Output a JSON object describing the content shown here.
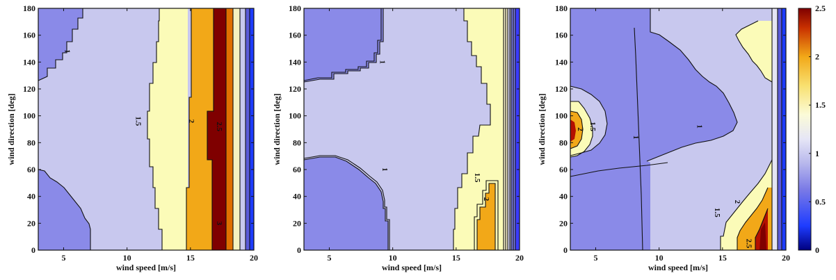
{
  "chart_data": [
    {
      "type": "heatmap",
      "title": "",
      "xlabel": "wind speed [m/s]",
      "ylabel": "wind direction [deg]",
      "xlim": [
        3,
        20
      ],
      "ylim": [
        0,
        180
      ],
      "xticks": [
        5,
        10,
        15,
        20
      ],
      "yticks": [
        0,
        20,
        40,
        60,
        80,
        100,
        120,
        140,
        160,
        180
      ],
      "grid": false,
      "contour_labels": [
        {
          "text": "1",
          "x": 5.1,
          "y": 148
        },
        {
          "text": "1.5",
          "x": 10.7,
          "y": 96
        },
        {
          "text": "2",
          "x": 14.9,
          "y": 96
        },
        {
          "text": "2.5",
          "x": 17.1,
          "y": 92
        },
        {
          "text": "3",
          "x": 17.1,
          "y": 20
        }
      ]
    },
    {
      "type": "heatmap",
      "title": "",
      "xlabel": "wind speed [m/s]",
      "ylabel": "wind direction [deg]",
      "xlim": [
        3,
        20
      ],
      "ylim": [
        0,
        180
      ],
      "xticks": [
        5,
        10,
        15,
        20
      ],
      "yticks": [
        0,
        20,
        40,
        60,
        80,
        100,
        120,
        140,
        160,
        180
      ],
      "grid": false,
      "contour_labels": [
        {
          "text": "1",
          "x": 9.0,
          "y": 140
        },
        {
          "text": "1",
          "x": 9.2,
          "y": 60
        },
        {
          "text": "1.5",
          "x": 16.5,
          "y": 54
        },
        {
          "text": "2",
          "x": 17.2,
          "y": 38
        }
      ]
    },
    {
      "type": "heatmap",
      "title": "",
      "xlabel": "wind speed [m/s]",
      "ylabel": "wind direction [deg]",
      "xlim": [
        3,
        20
      ],
      "ylim": [
        0,
        180
      ],
      "xticks": [
        5,
        10,
        15,
        20
      ],
      "yticks": [
        0,
        20,
        40,
        60,
        80,
        100,
        120,
        140,
        160,
        180
      ],
      "grid": false,
      "contour_labels": [
        {
          "text": "2",
          "x": 3.6,
          "y": 90
        },
        {
          "text": "1.5",
          "x": 4.6,
          "y": 92
        },
        {
          "text": "1",
          "x": 8.0,
          "y": 84
        },
        {
          "text": "1",
          "x": 13.0,
          "y": 92
        },
        {
          "text": "1.5",
          "x": 14.4,
          "y": 28
        },
        {
          "text": "2",
          "x": 16.0,
          "y": 36
        },
        {
          "text": "2.5",
          "x": 16.9,
          "y": 5
        }
      ]
    }
  ],
  "colorbar": {
    "ticks": [
      "0",
      "0.5",
      "1",
      "1.5",
      "2",
      "2.5"
    ],
    "range": [
      0,
      2.5
    ],
    "colors": [
      "#00007f",
      "#1e3cff",
      "#7a7ae6",
      "#c8c8ee",
      "#f4f4f4",
      "#fbfbb8",
      "#f7c020",
      "#dc6400",
      "#b41000",
      "#7f0000"
    ]
  }
}
